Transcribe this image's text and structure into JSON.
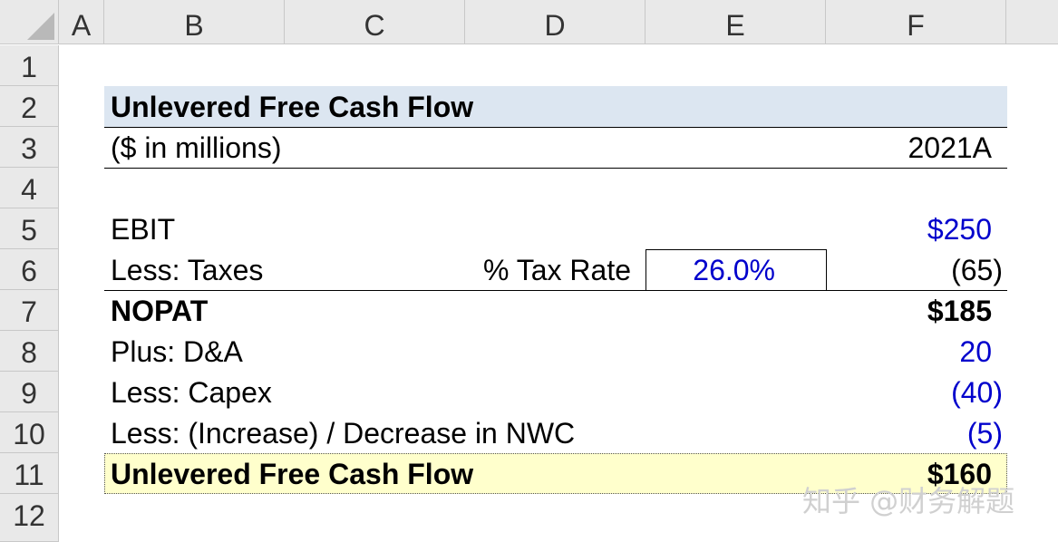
{
  "columns": [
    "A",
    "B",
    "C",
    "D",
    "E",
    "F"
  ],
  "rows": [
    "1",
    "2",
    "3",
    "4",
    "5",
    "6",
    "7",
    "8",
    "9",
    "10",
    "11",
    "12"
  ],
  "sheet": {
    "title": "Unlevered Free Cash Flow",
    "units": "($ in millions)",
    "period": "2021A",
    "ebit_label": "EBIT",
    "ebit_value": "$250",
    "taxes_label": "Less: Taxes",
    "tax_rate_label": "% Tax Rate",
    "tax_rate_value": "26.0%",
    "taxes_value": "(65)",
    "nopat_label": "NOPAT",
    "nopat_value": "$185",
    "da_label": "Plus: D&A",
    "da_value": "20",
    "capex_label": "Less: Capex",
    "capex_value": "(40)",
    "nwc_label": "Less: (Increase) / Decrease in NWC",
    "nwc_value": "(5)",
    "ufcf_label": "Unlevered Free Cash Flow",
    "ufcf_value": "$160"
  },
  "watermark": "知乎 @财务解题",
  "colors": {
    "input_blue": "#0000cc",
    "header_band": "#dce6f1",
    "total_band": "#ffffcc"
  }
}
